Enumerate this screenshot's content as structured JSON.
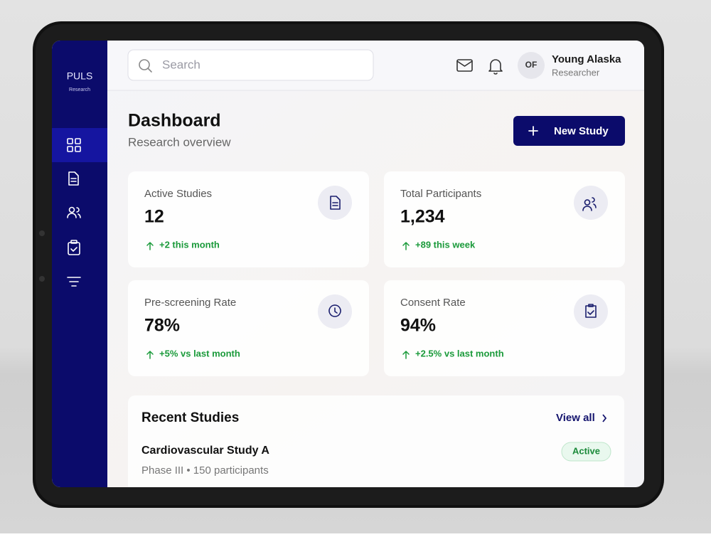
{
  "logo": {
    "name": "PULS",
    "tagline": "Research"
  },
  "header": {
    "search_placeholder": "Search",
    "avatar_initials": "OF",
    "user_name": "Young Alaska",
    "user_role": "Researcher"
  },
  "page": {
    "title": "Dashboard",
    "subtitle": "Research overview",
    "action": "New Study"
  },
  "stats": [
    {
      "label": "Active Studies",
      "value": "12",
      "change": "+2 this month"
    },
    {
      "label": "Total Participants",
      "value": "1,234",
      "change": "+89 this week"
    },
    {
      "label": "Pre-screening Rate",
      "value": "78%",
      "change": "+5% vs last month"
    },
    {
      "label": "Consent Rate",
      "value": "94%",
      "change": "+2.5% vs last month"
    }
  ],
  "recent": {
    "title": "Recent Studies",
    "link": "View all",
    "studies": [
      {
        "name": "Cardiovascular Study A",
        "meta": "Phase III • 150 participants",
        "status": "Active"
      }
    ]
  }
}
